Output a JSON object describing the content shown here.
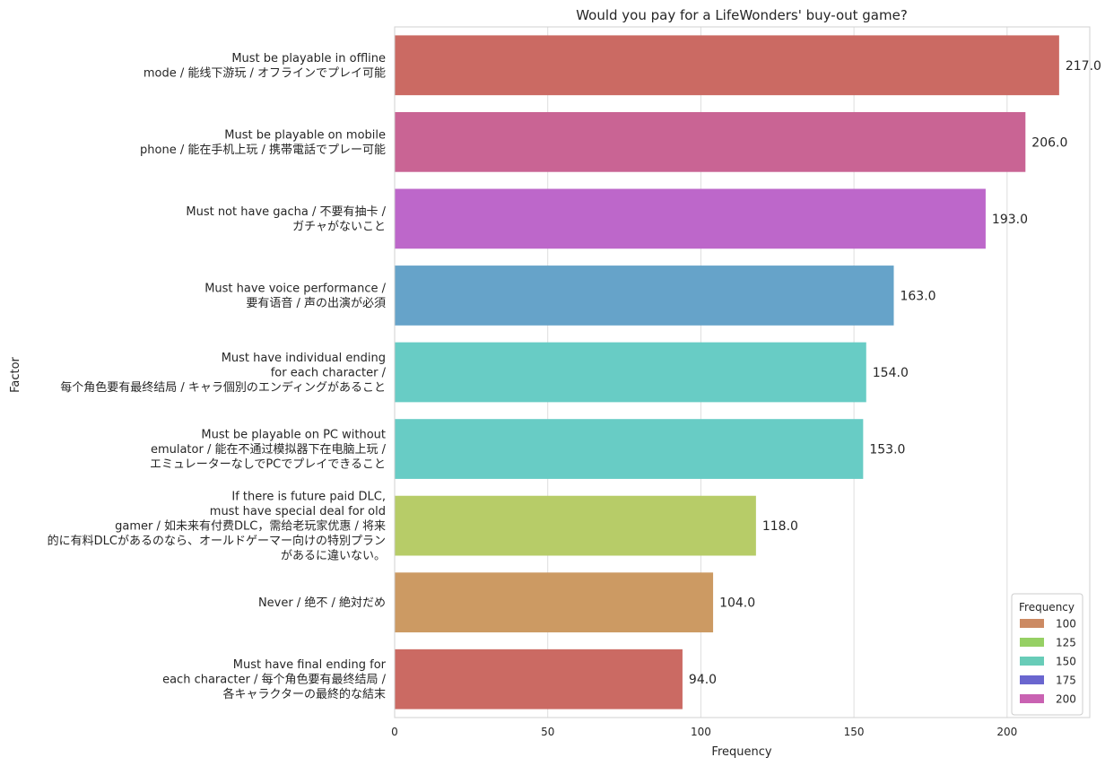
{
  "chart_data": {
    "type": "bar",
    "orientation": "horizontal",
    "title": "Would you pay for a LifeWonders' buy-out game?",
    "xlabel": "Frequency",
    "ylabel": "Factor",
    "xlim": [
      0,
      227
    ],
    "xticks": [
      0,
      50,
      100,
      150,
      200
    ],
    "grid": true,
    "legend_placement": "bottom-right",
    "categories": [
      [
        "Must be playable in offline",
        "mode / 能线下游玩 / オフラインでプレイ可能"
      ],
      [
        "Must be playable on mobile",
        "phone / 能在手机上玩 / 携帯電話でプレー可能"
      ],
      [
        "Must not have gacha / 不要有抽卡 /",
        "ガチャがないこと"
      ],
      [
        "Must have voice performance /",
        "要有语音 / 声の出演が必須"
      ],
      [
        "Must have individual ending",
        "for each character /",
        "每个角色要有最终结局 / キャラ個別のエンディングがあること"
      ],
      [
        "Must be playable on PC without",
        "emulator / 能在不通过模拟器下在电脑上玩 /",
        "エミュレーターなしでPCでプレイできること"
      ],
      [
        "If there is future paid DLC,",
        "must have special deal for old",
        "gamer / 如未来有付费DLC，需给老玩家优惠 / 将来",
        "的に有料DLCがあるのなら、オールドゲーマー向けの特別プラン",
        "があるに違いない。"
      ],
      [
        "Never / 绝不 / 絶対だめ"
      ],
      [
        "Must have final ending for",
        "each character / 每个角色要有最终结局 /",
        "各キャラクターの最終的な結末"
      ]
    ],
    "values": [
      217,
      206,
      193,
      163,
      154,
      153,
      118,
      104,
      94
    ],
    "value_labels": [
      "217.0",
      "206.0",
      "193.0",
      "163.0",
      "154.0",
      "153.0",
      "118.0",
      "104.0",
      "94.0"
    ],
    "bar_colors": [
      "#cb6a63",
      "#c96494",
      "#bd67ca",
      "#66a3c9",
      "#68ccc5",
      "#68ccc5",
      "#b7cc68",
      "#cc9a63",
      "#cb6a63"
    ],
    "legend": {
      "title": "Frequency",
      "entries": [
        {
          "label": "100",
          "color": "#cc8a63"
        },
        {
          "label": "125",
          "color": "#96d064"
        },
        {
          "label": "150",
          "color": "#68ccb8"
        },
        {
          "label": "175",
          "color": "#6a66cf"
        },
        {
          "label": "200",
          "color": "#c962b2"
        }
      ]
    }
  }
}
